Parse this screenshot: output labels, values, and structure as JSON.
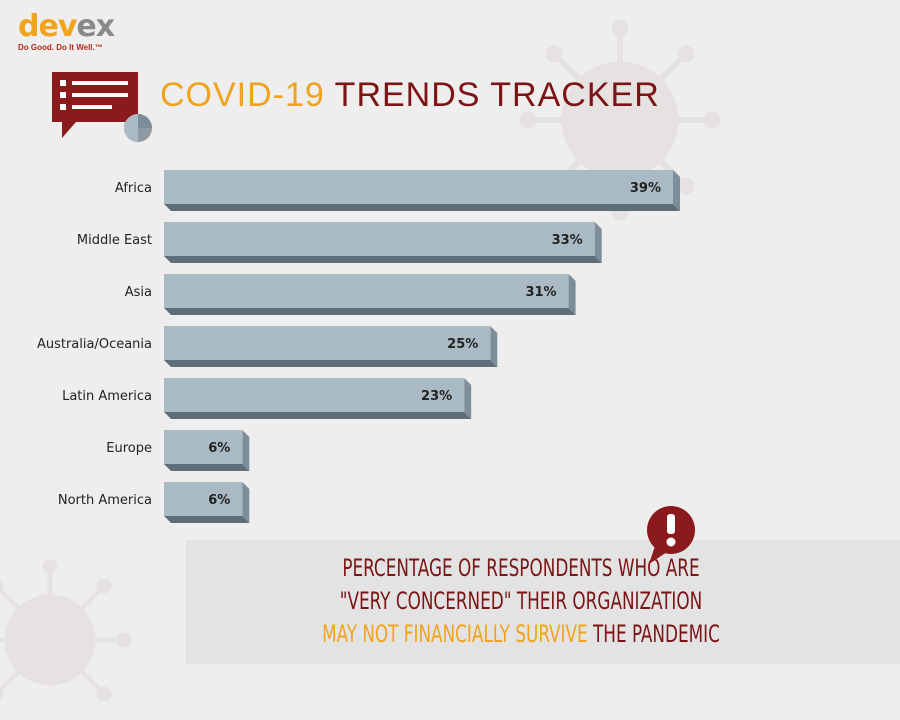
{
  "brand": {
    "logo_dev": "dev",
    "logo_ex": "ex",
    "tagline": "Do Good. Do It Well.™"
  },
  "header": {
    "title_part1": "COVID-19",
    "title_part2": "TRENDS TRACKER",
    "icon": "survey-report-icon"
  },
  "chart_data": {
    "type": "bar",
    "orientation": "horizontal",
    "categories": [
      "Africa",
      "Middle East",
      "Asia",
      "Australia/Oceania",
      "Latin America",
      "Europe",
      "North America"
    ],
    "values": [
      39,
      33,
      31,
      25,
      23,
      6,
      6
    ],
    "data_labels": [
      "39%",
      "33%",
      "31%",
      "25%",
      "23%",
      "6%",
      "6%"
    ],
    "unit": "%",
    "xlim": [
      0,
      39
    ],
    "grid": false,
    "legend": "none",
    "colors": {
      "bar_face": "#a9bac4",
      "bar_side": "#7c8e99",
      "bar_bottom": "#5d6e78"
    }
  },
  "callout": {
    "line1": "PERCENTAGE OF RESPONDENTS WHO ARE",
    "line2": "\"VERY CONCERNED\" THEIR ORGANIZATION",
    "line3_highlight": "MAY NOT FINANCIALLY SURVIVE",
    "line3_rest": " THE PANDEMIC",
    "icon": "exclamation-bubble-icon"
  },
  "colors": {
    "accent": "#f0a31c",
    "brand_dark_red": "#7c1416",
    "background": "#efeeee"
  }
}
